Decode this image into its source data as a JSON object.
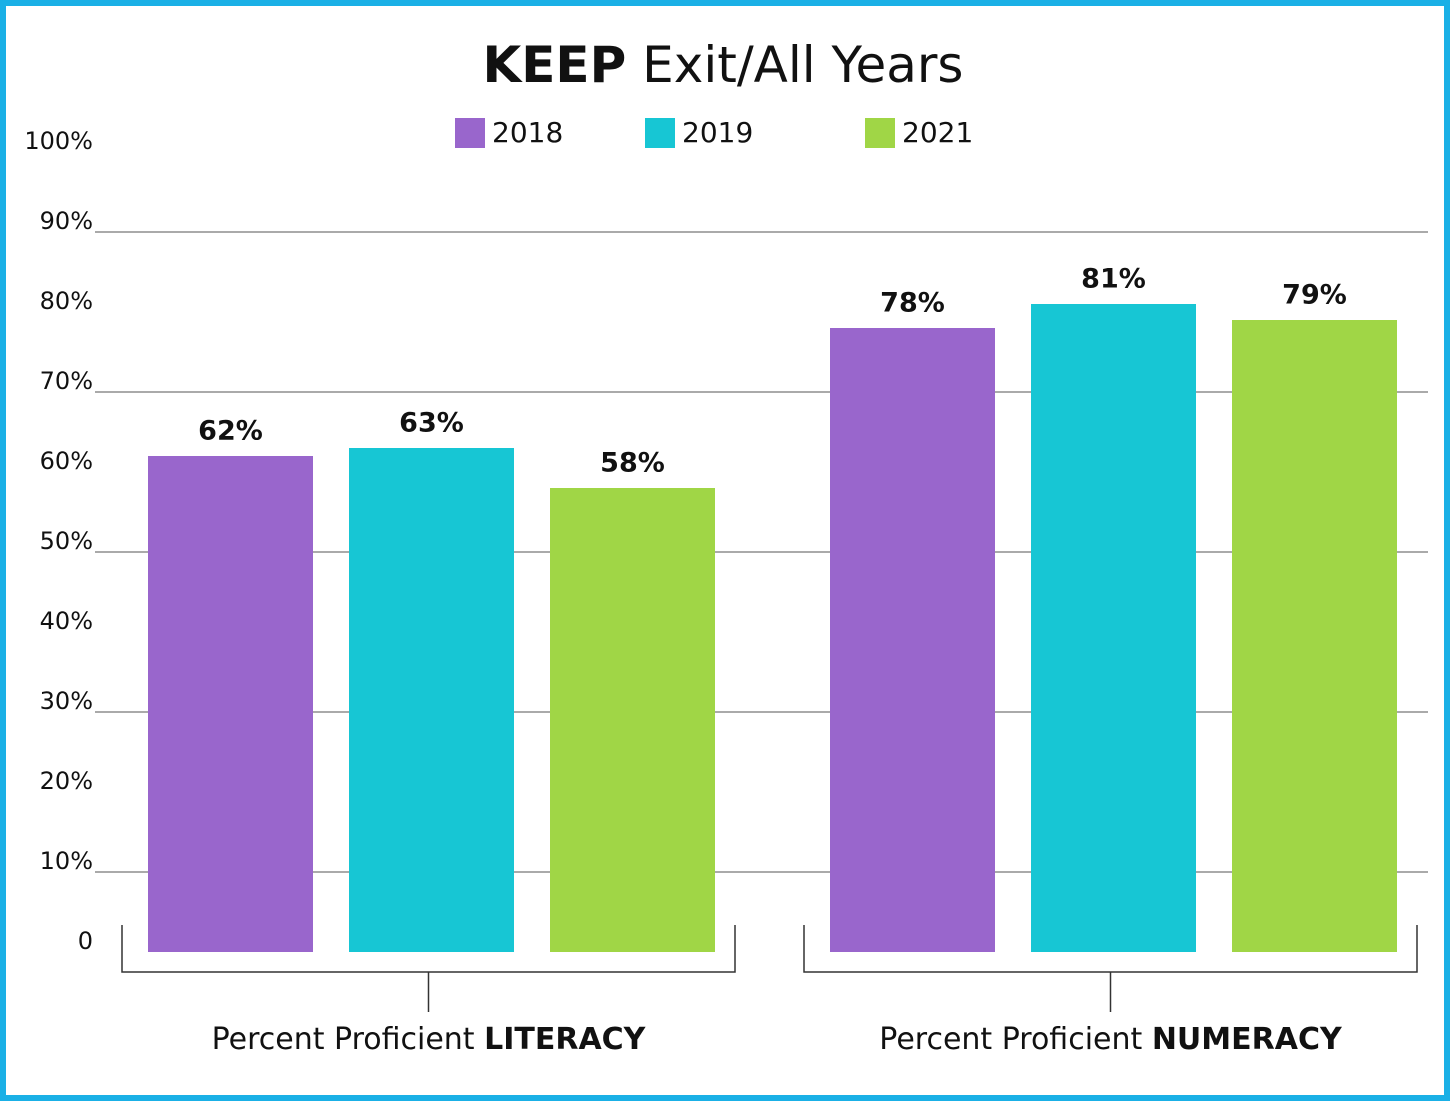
{
  "chart_data": {
    "type": "bar",
    "title_emphasis": "KEEP",
    "title": "Exit/All Years",
    "category_prefix": "Percent Proficient",
    "categories": [
      "LITERACY",
      "NUMERACY"
    ],
    "series": [
      {
        "name": "2018",
        "color": "#9966cc",
        "values": [
          62,
          78
        ],
        "value_labels": [
          "62%",
          "78%"
        ]
      },
      {
        "name": "2019",
        "color": "#17c6d4",
        "values": [
          63,
          81
        ],
        "value_labels": [
          "63%",
          "81%"
        ]
      },
      {
        "name": "2021",
        "color": "#a0d646",
        "values": [
          58,
          79
        ],
        "value_labels": [
          "58%",
          "79%"
        ]
      }
    ],
    "ylim": [
      0,
      100
    ],
    "yticks": [
      0,
      {
        "value": 10,
        "label": "10%"
      },
      {
        "value": 20,
        "label": "20%"
      },
      {
        "value": 30,
        "label": "30%"
      },
      {
        "value": 40,
        "label": "40%"
      },
      {
        "value": 50,
        "label": "50%"
      },
      {
        "value": 60,
        "label": "60%"
      },
      {
        "value": 70,
        "label": "70%"
      },
      {
        "value": 80,
        "label": "80%"
      },
      {
        "value": 90,
        "label": "90%"
      },
      {
        "value": 100,
        "label": "100%"
      }
    ],
    "grid": "alternate"
  }
}
